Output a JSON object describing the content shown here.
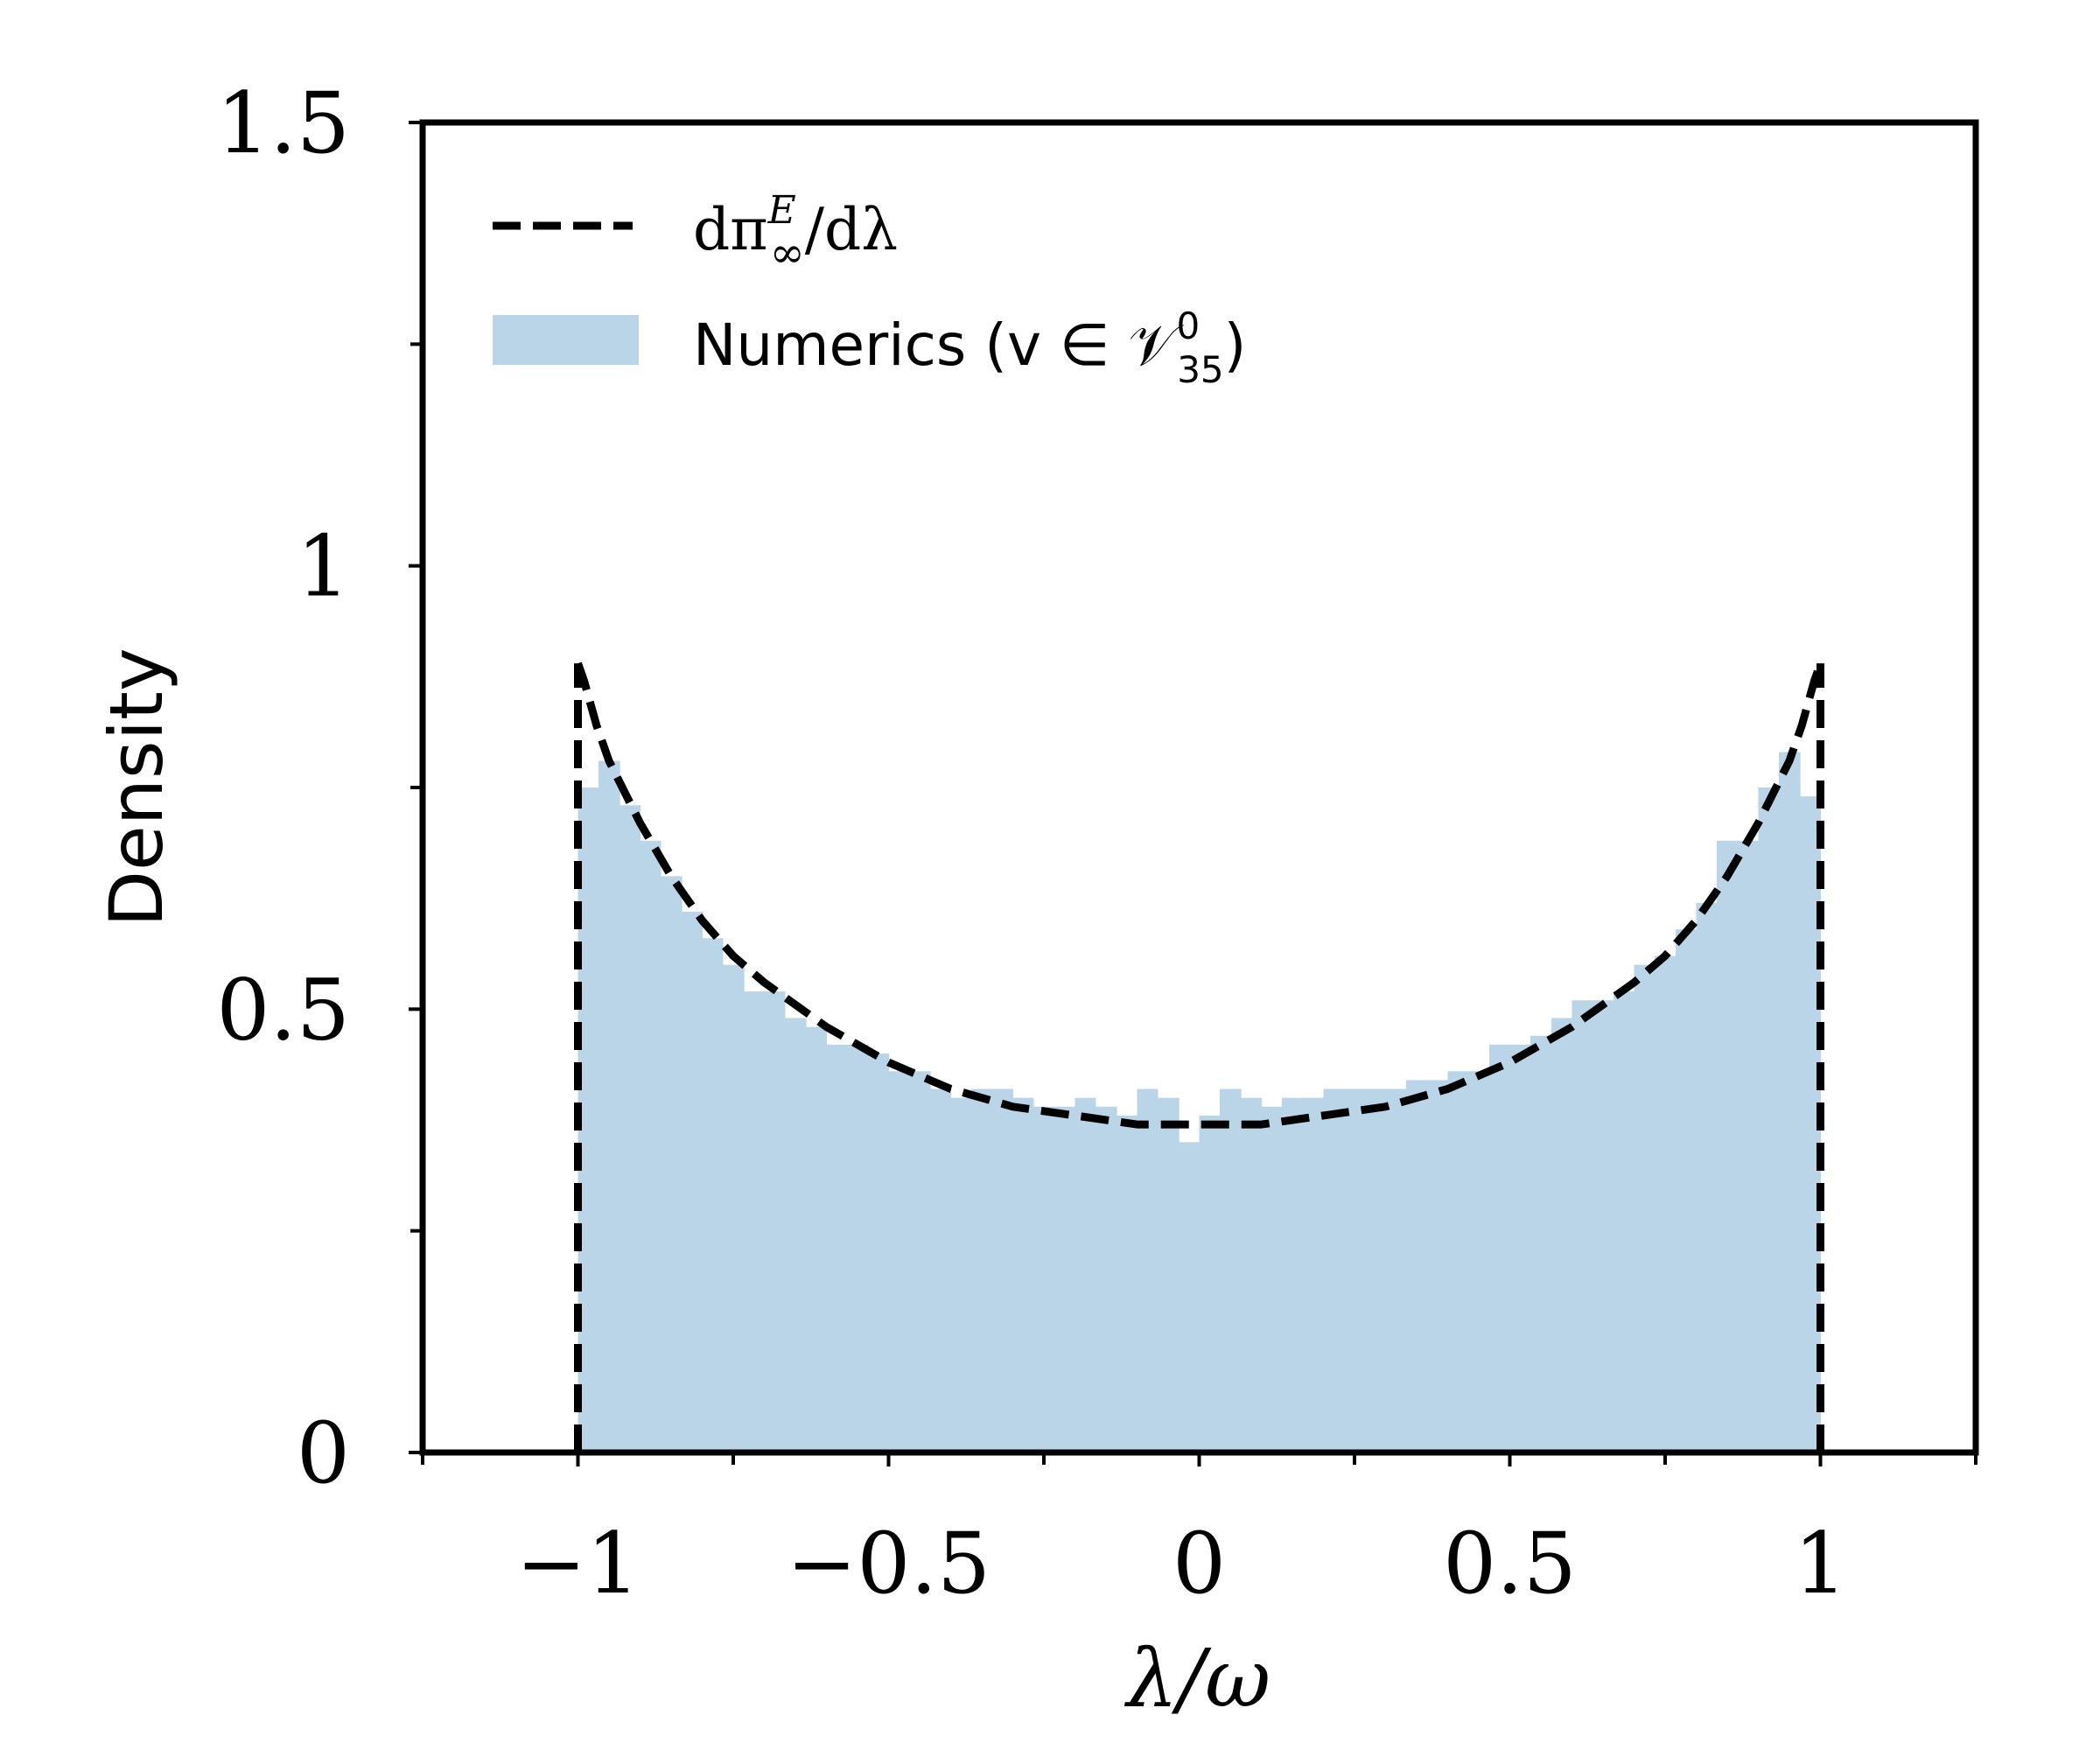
{
  "chart_data": {
    "type": "bar",
    "xlabel": "λ/ω",
    "ylabel": "Density",
    "xlim": [
      -1.25,
      1.25
    ],
    "ylim": [
      0,
      1.5
    ],
    "x_ticks": [
      -1,
      -0.5,
      0,
      0.5,
      1
    ],
    "x_tick_labels": [
      "−1",
      "−0.5",
      "0",
      "0.5",
      "1"
    ],
    "x_minor_ticks": [
      -1.25,
      -0.75,
      -0.25,
      0.25,
      0.75,
      1.25
    ],
    "y_ticks": [
      0,
      0.5,
      1,
      1.5
    ],
    "y_tick_labels": [
      "0",
      "0.5",
      "1",
      "1.5"
    ],
    "y_minor_ticks": [
      0.25,
      0.75,
      1.25
    ],
    "grid": false,
    "legend_position": "top-left",
    "histogram": {
      "name": "Numerics (v ∈ 𝒱",
      "name_sup": "0",
      "name_sub": "35",
      "name_close": ")",
      "color": "#bad5e8",
      "bin_edges": [
        -1.0,
        -0.967,
        -0.933,
        -0.9,
        -0.867,
        -0.833,
        -0.8,
        -0.767,
        -0.733,
        -0.7,
        -0.667,
        -0.633,
        -0.6,
        -0.567,
        -0.533,
        -0.5,
        -0.467,
        -0.433,
        -0.4,
        -0.367,
        -0.333,
        -0.3,
        -0.267,
        -0.233,
        -0.2,
        -0.167,
        -0.133,
        -0.1,
        -0.067,
        -0.033,
        0.0,
        0.033,
        0.067,
        0.1,
        0.133,
        0.167,
        0.2,
        0.233,
        0.267,
        0.3,
        0.333,
        0.367,
        0.4,
        0.433,
        0.467,
        0.5,
        0.533,
        0.567,
        0.6,
        0.633,
        0.667,
        0.7,
        0.733,
        0.767,
        0.8,
        0.833,
        0.867,
        0.9,
        0.933,
        0.967,
        1.0
      ],
      "values": [
        0.75,
        0.78,
        0.73,
        0.69,
        0.65,
        0.61,
        0.58,
        0.55,
        0.52,
        0.52,
        0.49,
        0.48,
        0.46,
        0.46,
        0.45,
        0.43,
        0.43,
        0.41,
        0.4,
        0.41,
        0.41,
        0.4,
        0.39,
        0.39,
        0.4,
        0.39,
        0.38,
        0.41,
        0.4,
        0.35,
        0.38,
        0.41,
        0.4,
        0.39,
        0.4,
        0.4,
        0.41,
        0.41,
        0.41,
        0.41,
        0.42,
        0.42,
        0.43,
        0.43,
        0.46,
        0.46,
        0.47,
        0.49,
        0.51,
        0.51,
        0.52,
        0.55,
        0.56,
        0.59,
        0.62,
        0.69,
        0.69,
        0.75,
        0.79,
        0.74
      ]
    },
    "theory": {
      "name": "dπ",
      "name_sup": "E",
      "name_sub": "∞",
      "name_tail": "/dλ",
      "style": "dashed",
      "color": "#000000",
      "x": [
        -1.0,
        -0.99,
        -0.97,
        -0.95,
        -0.9,
        -0.85,
        -0.8,
        -0.75,
        -0.7,
        -0.6,
        -0.5,
        -0.4,
        -0.3,
        -0.2,
        -0.1,
        0.0,
        0.1,
        0.2,
        0.3,
        0.4,
        0.5,
        0.6,
        0.7,
        0.75,
        0.8,
        0.85,
        0.9,
        0.95,
        0.97,
        0.99,
        1.0
      ],
      "y": [
        0.89,
        0.87,
        0.82,
        0.78,
        0.71,
        0.65,
        0.6,
        0.56,
        0.53,
        0.48,
        0.44,
        0.41,
        0.39,
        0.38,
        0.37,
        0.37,
        0.37,
        0.38,
        0.39,
        0.41,
        0.44,
        0.48,
        0.53,
        0.56,
        0.6,
        0.65,
        0.71,
        0.78,
        0.82,
        0.87,
        0.89
      ],
      "edges_x": [
        -1,
        1
      ],
      "edges_top": 0.89
    }
  }
}
